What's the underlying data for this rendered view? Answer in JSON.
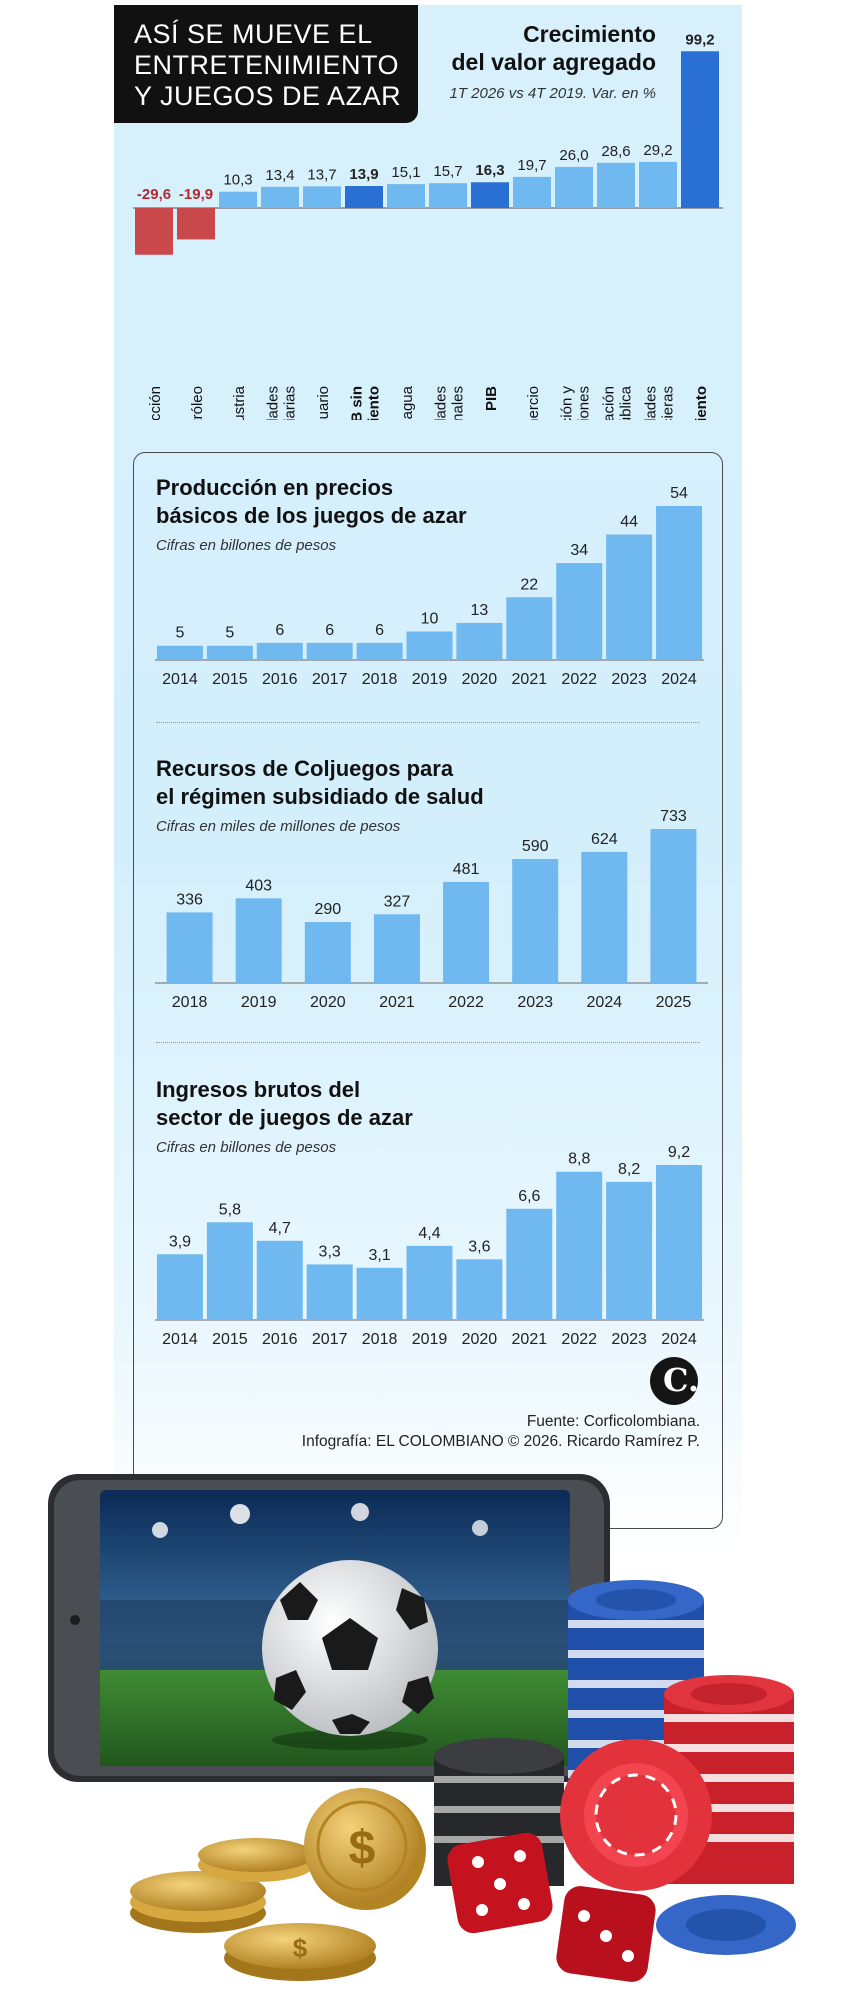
{
  "header": {
    "title_lines": [
      "ASÍ SE MUEVE EL",
      "ENTRETENIMIENTO",
      "Y JUEGOS DE AZAR"
    ]
  },
  "colors": {
    "bar_light": "#6fb8f0",
    "bar_dark": "#2a6fd3",
    "bar_negative": "#c9484c",
    "label_negative": "#b3282d",
    "background": "#d4effc"
  },
  "chart_data": [
    {
      "type": "bar",
      "title": "Crecimiento del valor agregado",
      "title_lines": [
        "Crecimiento",
        "del valor agregado"
      ],
      "subtitle": "1T 2026 vs 4T 2019. Var. en %",
      "categories": [
        "Construcción",
        "Minas y petróleo",
        "Industria",
        "Actividades inmobiliarias",
        "Agropecuario",
        "PIB sin entretenimiento",
        "Energía, gas y agua",
        "Actividades profesionales",
        "PIB",
        "Comercio",
        "Información y comunicaciones",
        "Administración pública",
        "Actividades financieras",
        "Entretenimiento"
      ],
      "category_lines": [
        [
          "Construcción"
        ],
        [
          "Minas y petróleo"
        ],
        [
          "Industria"
        ],
        [
          "Actividades",
          "inmobiliarias"
        ],
        [
          "Agropecuario"
        ],
        [
          "PIB sin",
          "entretenimiento"
        ],
        [
          "Energía, gas y agua"
        ],
        [
          "Actividades",
          "profesionales"
        ],
        [
          "PIB"
        ],
        [
          "Comercio"
        ],
        [
          "Información y",
          "comunicaciones"
        ],
        [
          "Administración",
          "pública"
        ],
        [
          "Actividades",
          "financieras"
        ],
        [
          "Entretenimiento"
        ]
      ],
      "values": [
        -29.6,
        -19.9,
        10.3,
        13.4,
        13.7,
        13.9,
        15.1,
        15.7,
        16.3,
        19.7,
        26.0,
        28.6,
        29.2,
        99.2
      ],
      "value_labels": [
        "-29,6",
        "-19,9",
        "10,3",
        "13,4",
        "13,7",
        "13,9",
        "15,1",
        "15,7",
        "16,3",
        "19,7",
        "26,0",
        "28,6",
        "29,2",
        "99,2"
      ],
      "highlight": [
        "PIB sin entretenimiento",
        "PIB",
        "Entretenimiento"
      ],
      "ylim": [
        -30,
        100
      ]
    },
    {
      "type": "bar",
      "title": "Producción en precios básicos de los juegos de azar",
      "title_lines": [
        "Producción en precios",
        "básicos de los juegos de azar"
      ],
      "subtitle": "Cifras en billones de pesos",
      "categories": [
        "2014",
        "2015",
        "2016",
        "2017",
        "2018",
        "2019",
        "2020",
        "2021",
        "2022",
        "2023",
        "2024"
      ],
      "values": [
        5,
        5,
        6,
        6,
        6,
        10,
        13,
        22,
        34,
        44,
        54
      ],
      "value_labels": [
        "5",
        "5",
        "6",
        "6",
        "6",
        "10",
        "13",
        "22",
        "34",
        "44",
        "54"
      ],
      "ylim": [
        0,
        54
      ]
    },
    {
      "type": "bar",
      "title": "Recursos de Coljuegos para el régimen subsidiado de salud",
      "title_lines": [
        "Recursos de Coljuegos para",
        "el régimen subsidiado de salud"
      ],
      "subtitle": "Cifras en miles de millones de pesos",
      "categories": [
        "2018",
        "2019",
        "2020",
        "2021",
        "2022",
        "2023",
        "2024",
        "2025"
      ],
      "values": [
        336,
        403,
        290,
        327,
        481,
        590,
        624,
        733
      ],
      "value_labels": [
        "336",
        "403",
        "290",
        "327",
        "481",
        "590",
        "624",
        "733"
      ],
      "ylim": [
        0,
        733
      ]
    },
    {
      "type": "bar",
      "title": "Ingresos brutos del sector de juegos de azar",
      "title_lines": [
        "Ingresos brutos del",
        "sector de juegos de azar"
      ],
      "subtitle": "Cifras en billones de pesos",
      "categories": [
        "2014",
        "2015",
        "2016",
        "2017",
        "2018",
        "2019",
        "2020",
        "2021",
        "2022",
        "2023",
        "2024"
      ],
      "values": [
        3.9,
        5.8,
        4.7,
        3.3,
        3.1,
        4.4,
        3.6,
        6.6,
        8.8,
        8.2,
        9.2
      ],
      "value_labels": [
        "3,9",
        "5,8",
        "4,7",
        "3,3",
        "3,1",
        "4,4",
        "3,6",
        "6,6",
        "8,8",
        "8,2",
        "9,2"
      ],
      "ylim": [
        0,
        9.2
      ]
    }
  ],
  "footer": {
    "source": "Fuente: Corficolombiana.",
    "credit": "Infografía: EL COLOMBIANO © 2026. Ricardo Ramírez P.",
    "logo_mark": "C."
  },
  "illustration": {
    "icons": [
      "smartphone-icon",
      "soccer-ball-icon",
      "casino-chips-icon",
      "dice-icon",
      "gold-coins-icon"
    ]
  }
}
